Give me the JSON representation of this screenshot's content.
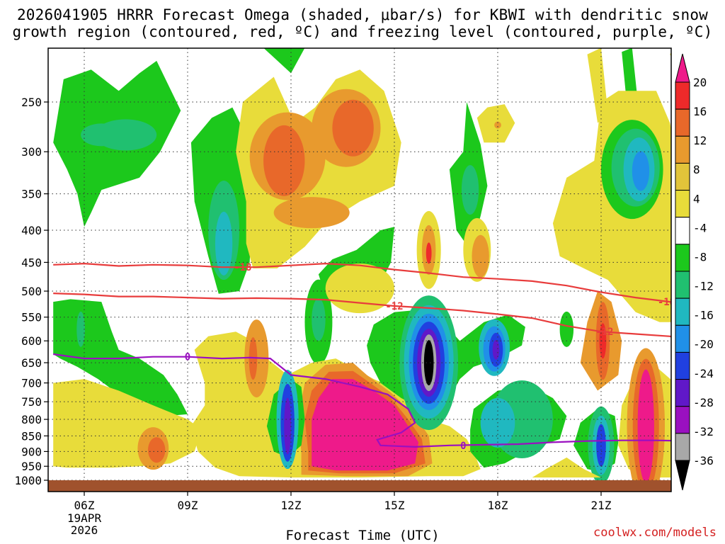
{
  "title_line1": "2026041905 HRRR Forecast Omega (shaded, μbar/s) for KBWI with dendritic snow",
  "title_line2": "growth region (contoured, red, ºC) and freezing level (contoured, purple, ºC)",
  "credit": "coolwx.com/models",
  "chart_data": {
    "type": "heatmap",
    "title": "2026041905 HRRR Forecast Omega (shaded, μbar/s) for KBWI with dendritic snow growth region (contoured, red, ºC) and freezing level (contoured, purple, ºC)",
    "xlabel": "Forecast Time (UTC)",
    "ylabel": "",
    "x_ticks": [
      {
        "label": "06Z",
        "sub": [
          "19APR",
          "2026"
        ],
        "hour": 6
      },
      {
        "label": "09Z",
        "hour": 9
      },
      {
        "label": "12Z",
        "hour": 12
      },
      {
        "label": "15Z",
        "hour": 15
      },
      {
        "label": "18Z",
        "hour": 18
      },
      {
        "label": "21Z",
        "hour": 21
      }
    ],
    "xlim_hours": [
      5.1,
      23.6
    ],
    "y_ticks_hPa": [
      250,
      300,
      350,
      400,
      450,
      500,
      550,
      600,
      650,
      700,
      750,
      800,
      850,
      900,
      950,
      1000
    ],
    "ylim_hPa": [
      200,
      1000
    ],
    "grid": true,
    "colorbar": {
      "labels": [
        "20",
        "16",
        "12",
        "8",
        "4",
        "-4",
        "-8",
        "-12",
        "-16",
        "-20",
        "-24",
        "-28",
        "-32",
        "-36"
      ],
      "colors": [
        "#ee1a8a",
        "#ee2a2a",
        "#e8682a",
        "#e89a2e",
        "#e2c43a",
        "#e8dc3a",
        "#ffffff",
        "#1cc81c",
        "#20c070",
        "#20b8c0",
        "#2090e8",
        "#2040e0",
        "#6018c8",
        "#9a10c0",
        "#a8a8a8",
        "#000000"
      ]
    },
    "contours": [
      {
        "label": "-18",
        "color": "#e83c3c"
      },
      {
        "label": "-12",
        "color": "#e83c3c"
      },
      {
        "label": "0",
        "color": "#9a10c0"
      }
    ]
  }
}
